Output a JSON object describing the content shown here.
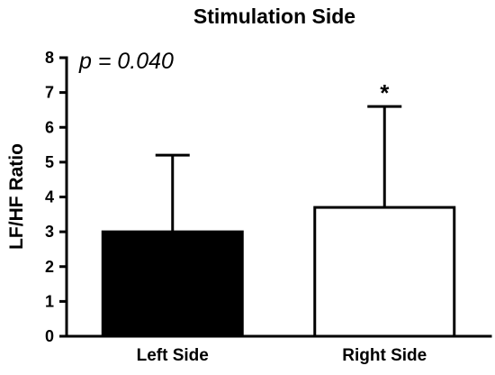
{
  "chart_data": {
    "type": "bar",
    "title": "Stimulation Side",
    "xlabel": "",
    "ylabel": "LF/HF Ratio",
    "ylim": [
      0,
      8
    ],
    "yticks": [
      "0",
      "1",
      "2",
      "3",
      "4",
      "5",
      "6",
      "7",
      "8"
    ],
    "categories": [
      "Left Side",
      "Right Side"
    ],
    "values": [
      3.0,
      3.7
    ],
    "error_upper": [
      5.2,
      6.6
    ],
    "bar_colors": [
      "#000000",
      "#ffffff"
    ],
    "annotations": {
      "p_value": "p = 0.040",
      "significance": [
        "",
        "*"
      ]
    },
    "grid": false,
    "legend": "none"
  }
}
